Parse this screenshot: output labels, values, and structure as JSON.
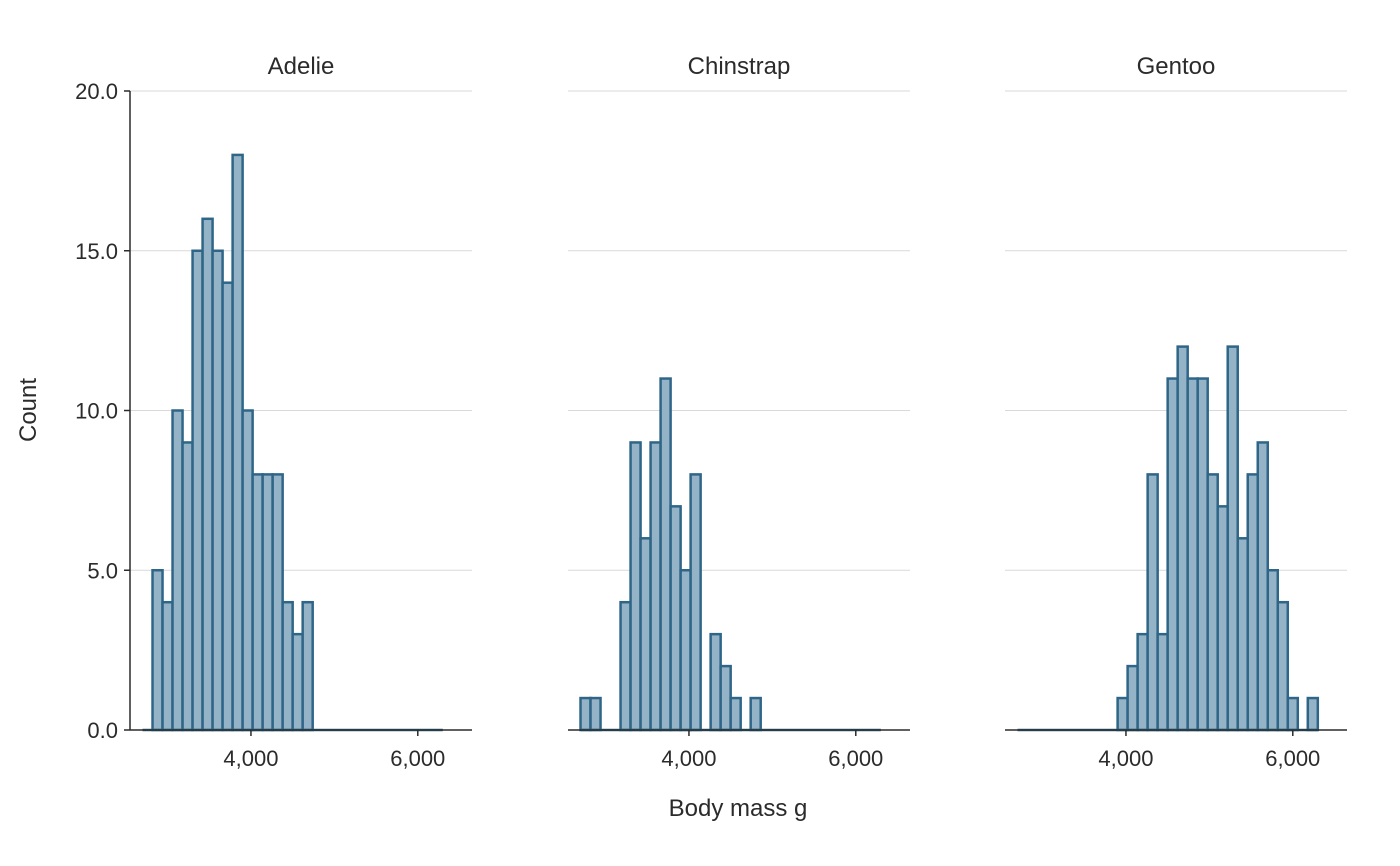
{
  "chart_data": {
    "type": "bar",
    "xlabel": "Body mass g",
    "ylabel": "Count",
    "ylim": [
      0,
      20
    ],
    "yticks": [
      0,
      5,
      10,
      15,
      20
    ],
    "ytick_labels": [
      "0.0",
      "5.0",
      "10.0",
      "15.0",
      "20.0"
    ],
    "xlim": [
      2550,
      6650
    ],
    "xticks": [
      4000,
      6000
    ],
    "xtick_labels": [
      "4,000",
      "6,000"
    ],
    "grid": "horizontal",
    "colors": {
      "bar_fill": "#94b3c7",
      "bar_edge": "#2f6688"
    },
    "bin_start": 2700,
    "bin_width": 120,
    "facets": [
      {
        "title": "Adelie",
        "counts": [
          0,
          5,
          4,
          10,
          9,
          15,
          16,
          15,
          14,
          18,
          10,
          8,
          8,
          8,
          4,
          3,
          4,
          0,
          0,
          0,
          0,
          0,
          0,
          0,
          0,
          0,
          0,
          0,
          0,
          0
        ]
      },
      {
        "title": "Chinstrap",
        "counts": [
          1,
          1,
          0,
          0,
          4,
          9,
          6,
          9,
          11,
          7,
          5,
          8,
          0,
          3,
          2,
          1,
          0,
          1,
          0,
          0,
          0,
          0,
          0,
          0,
          0,
          0,
          0,
          0,
          0,
          0
        ]
      },
      {
        "title": "Gentoo",
        "counts": [
          0,
          0,
          0,
          0,
          0,
          0,
          0,
          0,
          0,
          0,
          1,
          2,
          3,
          8,
          3,
          11,
          12,
          11,
          11,
          8,
          7,
          12,
          6,
          8,
          9,
          5,
          4,
          1,
          0,
          1
        ]
      }
    ]
  }
}
